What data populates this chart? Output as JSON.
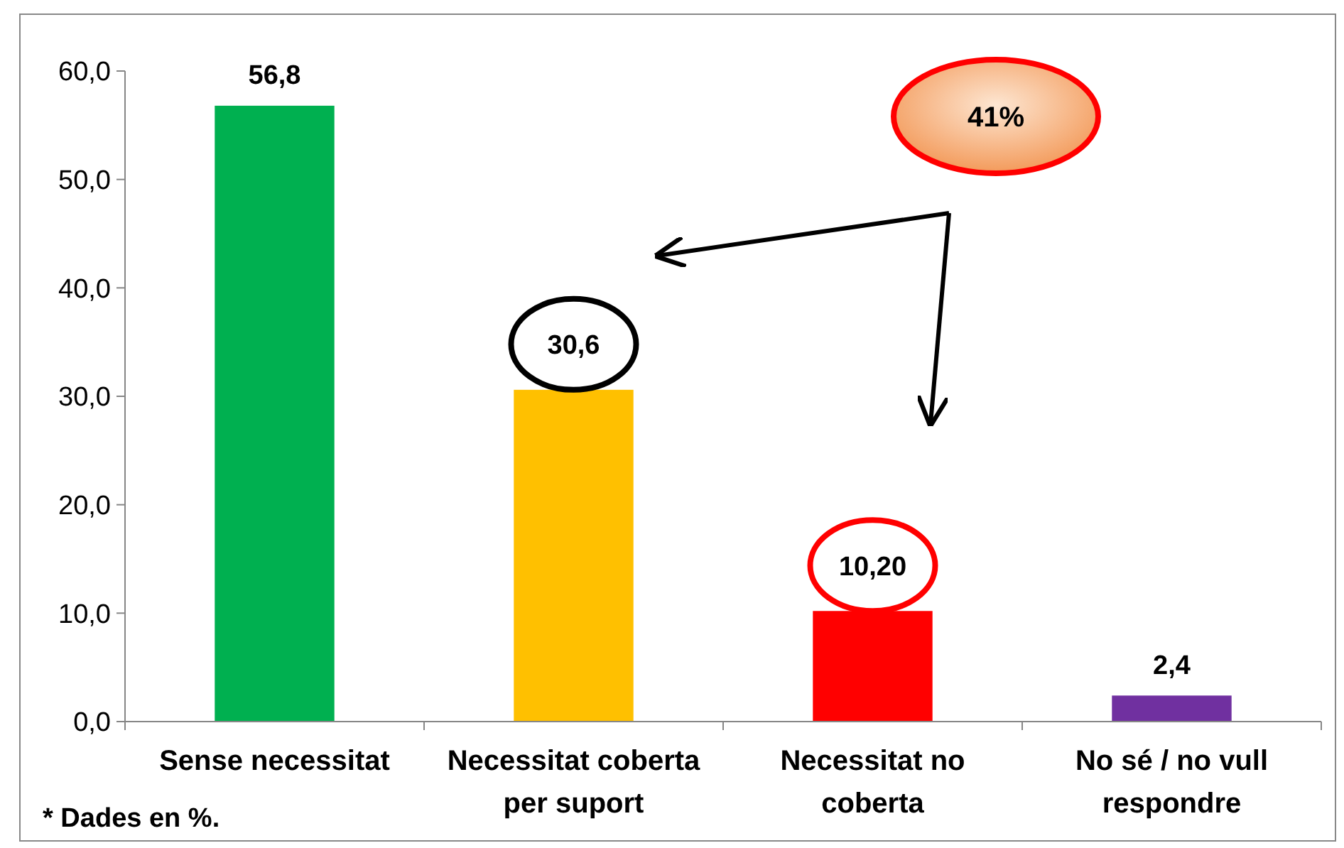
{
  "chart_data": {
    "type": "bar",
    "categories": [
      "Sense necessitat",
      "Necessitat coberta per suport",
      "Necessitat no coberta",
      "No sé / no vull respondre"
    ],
    "values": [
      56.8,
      30.6,
      10.2,
      2.4
    ],
    "colors": [
      "#00b050",
      "#ffc000",
      "#ff0000",
      "#7030a0"
    ],
    "value_labels": [
      "56,8",
      "30,6",
      "10,20",
      "2,4"
    ],
    "ylim": [
      0,
      60
    ],
    "yticks": [
      {
        "value": 0,
        "label": "0,0"
      },
      {
        "value": 10,
        "label": "10,0"
      },
      {
        "value": 20,
        "label": "20,0"
      },
      {
        "value": 30,
        "label": "30,0"
      },
      {
        "value": 40,
        "label": "40,0"
      },
      {
        "value": 50,
        "label": "50,0"
      },
      {
        "value": 60,
        "label": "60,0"
      }
    ],
    "grid": false,
    "annotations": [
      "41%",
      "* Dades en %."
    ]
  }
}
